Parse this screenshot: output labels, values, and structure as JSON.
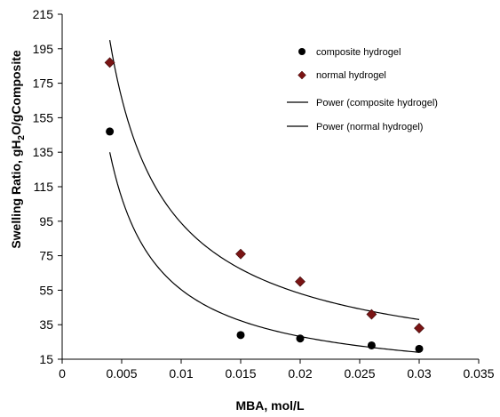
{
  "chart_data": {
    "type": "scatter",
    "xlabel": "MBA, mol/L",
    "ylabel_parts": [
      "Swelling Ratio, gH",
      "2",
      "O/gComposite"
    ],
    "xlim": [
      0,
      0.035
    ],
    "ylim": [
      15,
      215
    ],
    "xticks": [
      0,
      0.005,
      0.01,
      0.015,
      0.02,
      0.025,
      0.03,
      0.035
    ],
    "xtick_labels": [
      "0",
      "0.005",
      "0.01",
      "0.015",
      "0.02",
      "0.025",
      "0.03",
      "0.035"
    ],
    "yticks": [
      15,
      35,
      55,
      75,
      95,
      115,
      135,
      155,
      175,
      195,
      215
    ],
    "ytick_labels": [
      "15",
      "35",
      "55",
      "75",
      "95",
      "115",
      "135",
      "155",
      "175",
      "195",
      "215"
    ],
    "grid": false,
    "legend_position": "top-right",
    "series": [
      {
        "name": "composite hydrogel",
        "marker": "circle",
        "color": "#000000",
        "x": [
          0.004,
          0.015,
          0.02,
          0.026,
          0.03
        ],
        "y": [
          147,
          29,
          27,
          23,
          21
        ]
      },
      {
        "name": "normal hydrogel",
        "marker": "diamond",
        "color": "#7a1414",
        "x": [
          0.004,
          0.015,
          0.02,
          0.026,
          0.03
        ],
        "y": [
          187,
          76,
          60,
          41,
          33
        ]
      }
    ],
    "trendlines": [
      {
        "name": "Power (composite hydrogel)",
        "type": "power",
        "color": "#000000",
        "x_range": [
          0.004,
          0.03
        ],
        "y_at_ends": [
          135,
          19
        ]
      },
      {
        "name": "Power (normal hydrogel)",
        "type": "power",
        "color": "#000000",
        "x_range": [
          0.004,
          0.03
        ],
        "y_at_ends": [
          200,
          38
        ]
      }
    ]
  }
}
